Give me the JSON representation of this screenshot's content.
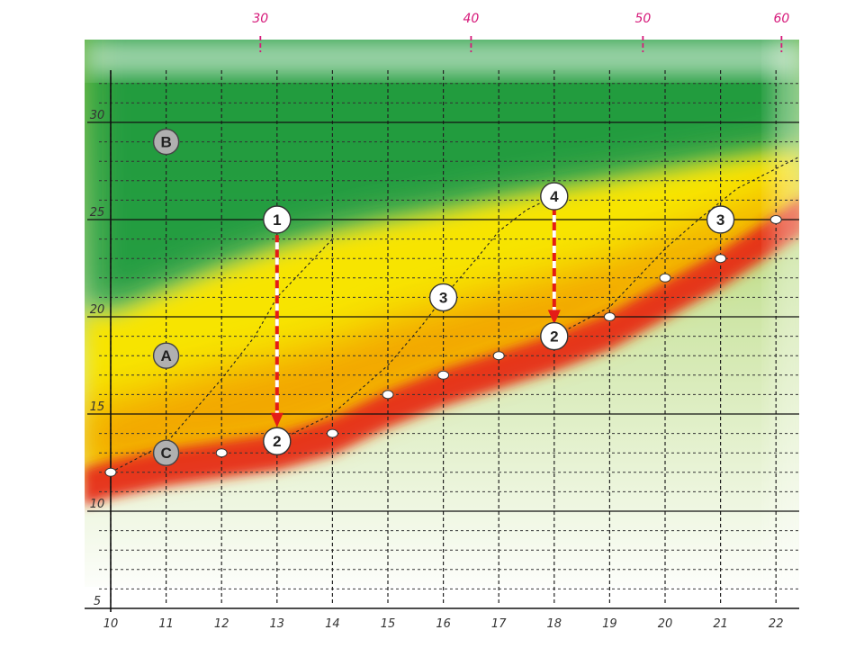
{
  "chart_data": {
    "type": "line",
    "x_ticks": [
      "10",
      "11",
      "12",
      "13",
      "14",
      "15",
      "16",
      "17",
      "18",
      "19",
      "20",
      "21",
      "22"
    ],
    "y_ticks": [
      "5",
      "10",
      "15",
      "20",
      "25",
      "30"
    ],
    "top_ticks": [
      {
        "label": "30",
        "x": 12.7
      },
      {
        "label": "40",
        "x": 16.5
      },
      {
        "label": "50",
        "x": 19.6
      },
      {
        "label": "60",
        "x": 22.1
      }
    ],
    "xlim": [
      10,
      22.4
    ],
    "ylim": [
      3.5,
      35
    ],
    "grid": true,
    "zones": [
      {
        "label": "A",
        "x": 11,
        "y": 18,
        "color": "#f5c400"
      },
      {
        "label": "B",
        "x": 11,
        "y": 29,
        "color": "#1f9a3e"
      },
      {
        "label": "C",
        "x": 11,
        "y": 13,
        "color": "#e63c1c"
      }
    ],
    "points": [
      {
        "x": 10,
        "y": 12
      },
      {
        "x": 12,
        "y": 13
      },
      {
        "x": 14,
        "y": 14
      },
      {
        "x": 15,
        "y": 16
      },
      {
        "x": 16,
        "y": 17
      },
      {
        "x": 17,
        "y": 18
      },
      {
        "x": 19,
        "y": 20
      },
      {
        "x": 20,
        "y": 22
      },
      {
        "x": 21,
        "y": 23
      },
      {
        "x": 22,
        "y": 25
      }
    ],
    "markers": [
      {
        "label": "1",
        "x": 13,
        "y": 25
      },
      {
        "label": "2",
        "x": 13,
        "y": 13.6
      },
      {
        "label": "3",
        "x": 16,
        "y": 21
      },
      {
        "label": "4",
        "x": 18,
        "y": 26.2
      },
      {
        "label": "2",
        "x": 18,
        "y": 19
      },
      {
        "label": "3",
        "x": 21,
        "y": 25
      }
    ],
    "arrows": [
      {
        "from": [
          13,
          24.2
        ],
        "to": [
          13,
          14.5
        ]
      },
      {
        "from": [
          18,
          25.6
        ],
        "to": [
          18,
          19.8
        ]
      }
    ],
    "dashed_curves": [
      [
        [
          10,
          12
        ],
        [
          11,
          13.5
        ],
        [
          12,
          16.8
        ],
        [
          12.6,
          19
        ],
        [
          13,
          21
        ],
        [
          13.5,
          22.5
        ],
        [
          14,
          24
        ]
      ],
      [
        [
          13,
          13.6
        ],
        [
          14,
          15
        ],
        [
          15,
          17.5
        ],
        [
          15.6,
          19.5
        ],
        [
          16,
          21
        ],
        [
          16.6,
          23
        ],
        [
          17,
          24.4
        ],
        [
          17.5,
          25.5
        ],
        [
          18,
          26.2
        ]
      ],
      [
        [
          18,
          19
        ],
        [
          19,
          20.5
        ],
        [
          19.6,
          22.3
        ],
        [
          20,
          23.5
        ],
        [
          20.6,
          25
        ],
        [
          21.3,
          26.6
        ],
        [
          22.4,
          28.2
        ]
      ]
    ],
    "colors": {
      "green": "#1f9a3e",
      "yellow": "#f7e400",
      "orange": "#f2a000",
      "red": "#e62a12",
      "light_green": "#8dc63f",
      "accent": "#d6197a"
    }
  }
}
